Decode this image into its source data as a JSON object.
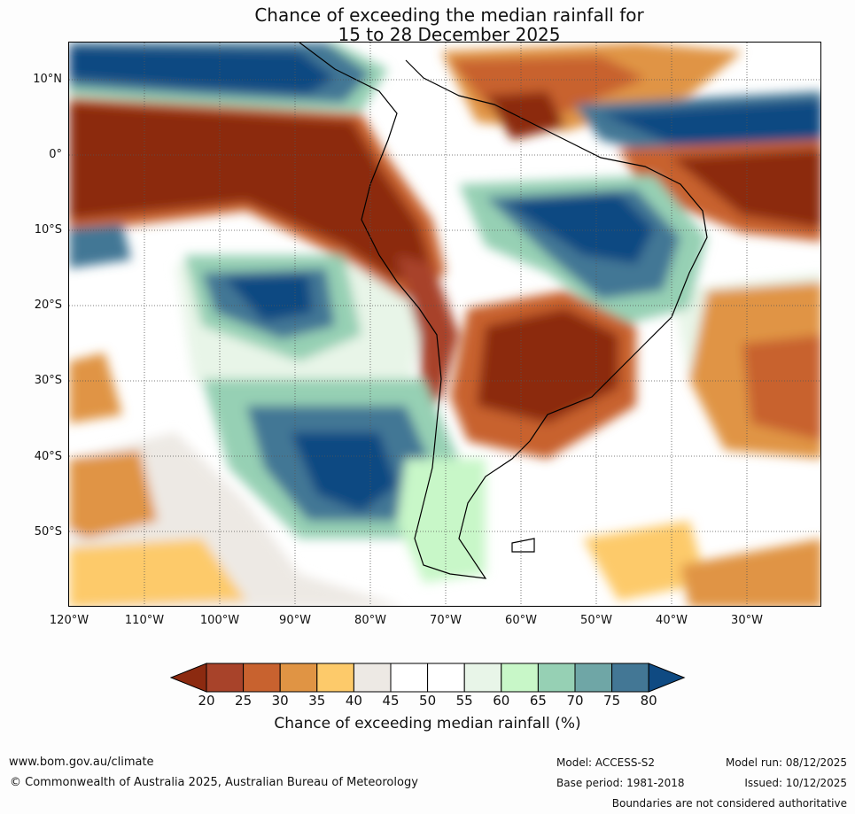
{
  "title_line1": "Chance of exceeding the median rainfall for",
  "title_line2": "15 to 28 December 2025",
  "lat_ticks": [
    "10°N",
    "0°",
    "10°S",
    "20°S",
    "30°S",
    "40°S",
    "50°S"
  ],
  "lon_ticks": [
    "120°W",
    "110°W",
    "100°W",
    "90°W",
    "80°W",
    "70°W",
    "60°W",
    "50°W",
    "40°W",
    "30°W"
  ],
  "colorbar": {
    "ticks": [
      "20",
      "25",
      "30",
      "35",
      "40",
      "45",
      "50",
      "55",
      "60",
      "65",
      "70",
      "75",
      "80"
    ],
    "colors": [
      "#8c2a10",
      "#a8432a",
      "#c8622f",
      "#e09444",
      "#fdca6a",
      "#ede9e4",
      "#ffffff",
      "#ffffff",
      "#e8f5e8",
      "#c8f7c8",
      "#96d0b4",
      "#6fa6a6",
      "#437795",
      "#0f4a82"
    ],
    "label": "Chance of exceeding median rainfall (%)"
  },
  "footer": {
    "website": "www.bom.gov.au/climate",
    "copyright": "© Commonwealth of Australia 2025, Australian Bureau of Meteorology",
    "model": "Model: ACCESS-S2",
    "base_period": "Base period: 1981-2018",
    "model_run": "Model run: 08/12/2025",
    "issued": "Issued: 10/12/2025",
    "boundaries_note": "Boundaries are not considered authoritative"
  }
}
